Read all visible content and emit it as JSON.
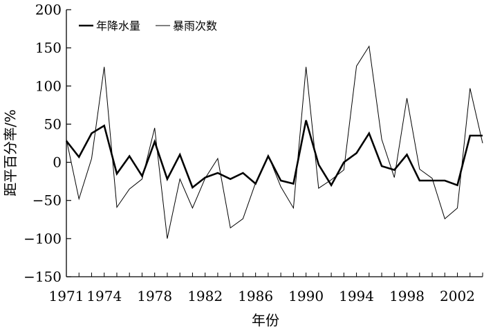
{
  "chart_data": {
    "type": "line",
    "xlabel": "年份",
    "ylabel": "距平百分率/%",
    "xlim": [
      1971,
      2004
    ],
    "ylim": [
      -150,
      200
    ],
    "yticks": [
      200,
      150,
      100,
      50,
      0,
      -50,
      -100,
      -150
    ],
    "xticks": [
      1971,
      1974,
      1978,
      1982,
      1986,
      1990,
      1994,
      1998,
      2002
    ],
    "grid": false,
    "legend_position": "top-left",
    "x": [
      1971,
      1972,
      1973,
      1974,
      1975,
      1976,
      1977,
      1978,
      1979,
      1980,
      1981,
      1982,
      1983,
      1984,
      1985,
      1986,
      1987,
      1988,
      1989,
      1990,
      1991,
      1992,
      1993,
      1994,
      1995,
      1996,
      1997,
      1998,
      1999,
      2000,
      2001,
      2002,
      2003,
      2004
    ],
    "series": [
      {
        "name": "年降水量",
        "color": "#000000",
        "style": "thick",
        "values": [
          28,
          7,
          38,
          48,
          -15,
          8,
          -18,
          27,
          -22,
          10,
          -33,
          -20,
          -14,
          -22,
          -14,
          -28,
          8,
          -24,
          -28,
          55,
          -3,
          -30,
          0,
          12,
          38,
          -5,
          -10,
          10,
          -24,
          -24,
          -24,
          -30,
          35,
          35
        ]
      },
      {
        "name": "暴雨次数",
        "color": "#000000",
        "style": "thin",
        "values": [
          30,
          -48,
          5,
          125,
          -59,
          -35,
          -22,
          45,
          -100,
          -22,
          -60,
          -21,
          5,
          -86,
          -74,
          -27,
          9,
          -32,
          -60,
          125,
          -34,
          -23,
          -10,
          126,
          152,
          30,
          -20,
          84,
          -9,
          -21,
          -74,
          -60,
          97,
          25
        ]
      }
    ]
  }
}
